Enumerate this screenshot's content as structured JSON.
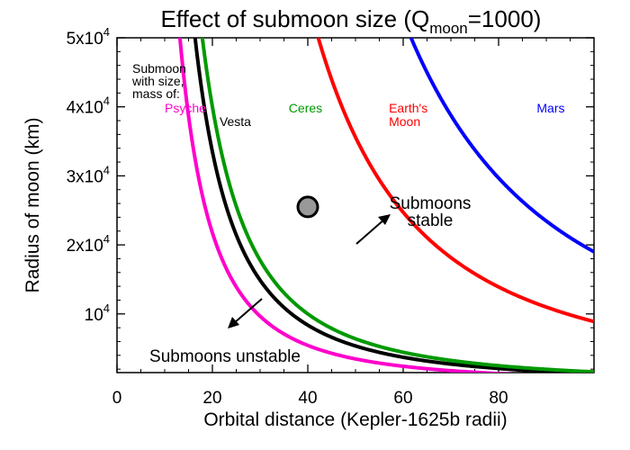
{
  "chart_data": {
    "type": "line",
    "title": {
      "main": "Effect of submoon size (Q",
      "sub": "moon",
      "tail": "=1000)"
    },
    "xlabel": "Orbital distance (Kepler-1625b radii)",
    "ylabel": "Radius of moon (km)",
    "xlim": [
      0,
      100
    ],
    "ylim": [
      1500,
      50000
    ],
    "x_ticks": [
      {
        "value": 0,
        "label": "0"
      },
      {
        "value": 20,
        "label": "20"
      },
      {
        "value": 40,
        "label": "40"
      },
      {
        "value": 60,
        "label": "60"
      },
      {
        "value": 80,
        "label": "80"
      }
    ],
    "y_ticks": [
      {
        "value": 10000,
        "mant": "",
        "label": "10",
        "exp": "4"
      },
      {
        "value": 20000,
        "mant": "2x",
        "label": "10",
        "exp": "4"
      },
      {
        "value": 30000,
        "mant": "3x",
        "label": "10",
        "exp": "4"
      },
      {
        "value": 40000,
        "mant": "4x",
        "label": "10",
        "exp": "4"
      },
      {
        "value": 50000,
        "mant": "5x",
        "label": "10",
        "exp": "4"
      }
    ],
    "series": [
      {
        "name": "Psyche",
        "color": "#ff00cc",
        "k": 8700000.0,
        "label_pos": [
          10,
          39200
        ]
      },
      {
        "name": "Vesta",
        "color": "#000000",
        "k": 13400000.0,
        "label_pos": [
          21.5,
          37200
        ]
      },
      {
        "name": "Ceres",
        "color": "#009900",
        "k": 16000000.0,
        "label_pos": [
          36,
          39200
        ]
      },
      {
        "name": "Earth's Moon",
        "lines": [
          "Earth's",
          "Moon"
        ],
        "color": "#ff0000",
        "k": 89000000.0,
        "label_pos": [
          57,
          39200
        ]
      },
      {
        "name": "Mars",
        "color": "#0000ff",
        "k": 190000000.0,
        "label_pos": [
          88,
          39200
        ]
      }
    ],
    "point": {
      "x": 40,
      "y": 25500,
      "color": "#999999"
    },
    "annotations": {
      "legend_header": [
        "Submoon",
        "with size,",
        "mass of:"
      ],
      "stable": [
        "Submoons",
        "stable"
      ],
      "unstable": "Submoons unstable"
    }
  }
}
